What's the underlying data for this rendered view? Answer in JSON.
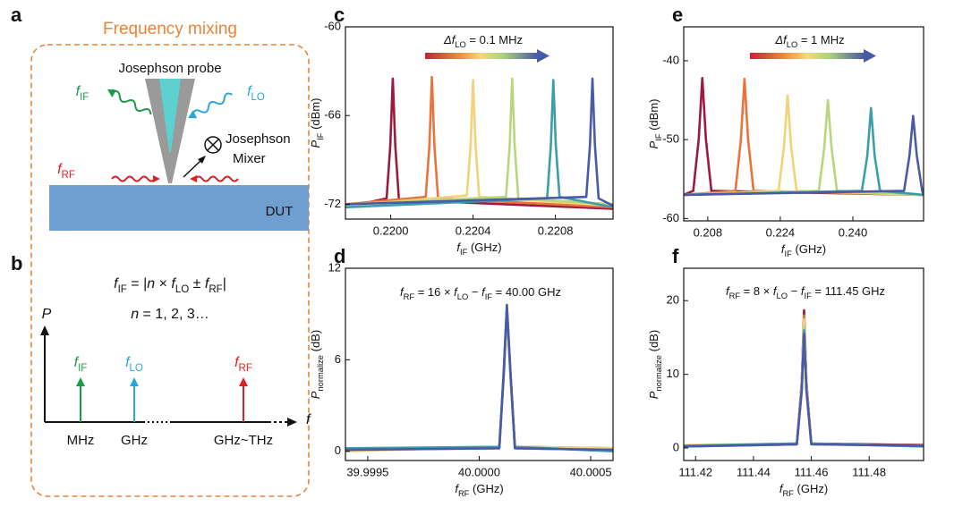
{
  "figure": {
    "panel_a": {
      "label": "a",
      "title": "Frequency mixing",
      "probe": "Josephson probe",
      "f_if": [
        "f",
        "IF"
      ],
      "f_lo": [
        "f",
        "LO"
      ],
      "f_rf": [
        "f",
        "RF"
      ],
      "mixer": [
        "Josephson",
        "Mixer"
      ],
      "dut": "DUT"
    },
    "panel_b": {
      "label": "b",
      "formula": [
        "f",
        "IF",
        " = |",
        "n",
        " × ",
        "f",
        "LO",
        " ± ",
        "f",
        "RF",
        "|"
      ],
      "n_values": [
        "n",
        " = 1, 2, 3…"
      ],
      "p_axis": "P",
      "f_axis": "f",
      "f_if": [
        "f",
        "IF"
      ],
      "f_lo": [
        "f",
        "LO"
      ],
      "f_rf": [
        "f",
        "RF"
      ],
      "units": [
        "MHz",
        "GHz",
        "GHz~THz"
      ]
    }
  },
  "chart_data": [
    {
      "type": "line",
      "label": "c",
      "annotation": [
        "Δ",
        "f",
        "LO",
        " = 0.1 MHz"
      ],
      "xlabel": [
        "f",
        "IF",
        " (GHz)"
      ],
      "ylabel": [
        "P",
        "IF",
        " (dBm)"
      ],
      "xlim": [
        0.21978,
        0.22108
      ],
      "ylim": [
        -73,
        -60
      ],
      "xticks": [
        {
          "value": 0.22,
          "label": "0.2200"
        },
        0.2204,
        0.2208
      ],
      "yticks": [
        -60,
        -66,
        -72
      ],
      "series": [
        {
          "color": "#9b1b3e",
          "x": [
            0.21978,
            0.21998,
            0.219998,
            0.22001,
            0.220022,
            0.22004,
            0.22108
          ],
          "values": [
            -72.2,
            -71.6,
            -68,
            -63.5,
            -68,
            -71.7,
            -72.3
          ]
        },
        {
          "color": "#e8743b",
          "x": [
            0.21978,
            0.22017,
            0.220188,
            0.2202,
            0.220212,
            0.22023,
            0.22108
          ],
          "values": [
            -72,
            -71.5,
            -68,
            -63.4,
            -68,
            -71.6,
            -72.2
          ]
        },
        {
          "color": "#f2d27a",
          "x": [
            0.21978,
            0.22037,
            0.220388,
            0.2204,
            0.220412,
            0.22043,
            0.22108
          ],
          "values": [
            -72.1,
            -71.4,
            -68,
            -63.6,
            -68,
            -71.5,
            -72.1
          ]
        },
        {
          "color": "#b8d67c",
          "x": [
            0.21978,
            0.22056,
            0.220578,
            0.22059,
            0.220602,
            0.22062,
            0.22108
          ],
          "values": [
            -72,
            -71.5,
            -68,
            -63.5,
            -68,
            -71.6,
            -72
          ]
        },
        {
          "color": "#3b9fa8",
          "x": [
            0.21978,
            0.22076,
            0.220778,
            0.22079,
            0.220802,
            0.22082,
            0.22108
          ],
          "values": [
            -72.2,
            -71.6,
            -68,
            -63.6,
            -68,
            -71.5,
            -72.2
          ]
        },
        {
          "color": "#4a5aa6",
          "x": [
            0.21978,
            0.22095,
            0.220968,
            0.22098,
            0.220992,
            0.22101,
            0.22108
          ],
          "values": [
            -72,
            -71.5,
            -68,
            -63.5,
            -68,
            -71.6,
            -72.1
          ]
        }
      ]
    },
    {
      "type": "line",
      "label": "e",
      "annotation": [
        "Δ",
        "f",
        "LO",
        " = 1 MHz"
      ],
      "xlabel": [
        "f",
        "IF",
        " (GHz)"
      ],
      "ylabel": [
        "P",
        "IF",
        " (dBm)"
      ],
      "xlim": [
        0.2027,
        0.2556
      ],
      "ylim": [
        -60.3,
        -35.7
      ],
      "xticks": [
        0.208,
        0.224,
        {
          "value": 0.24,
          "label": "0.240"
        }
      ],
      "yticks": [
        -40,
        -50,
        -60
      ],
      "series": [
        {
          "color": "#9b1b3e",
          "x": [
            0.2027,
            0.2048,
            0.206,
            0.2068,
            0.2076,
            0.2088,
            0.2556
          ],
          "values": [
            -57,
            -56.5,
            -50,
            -42.2,
            -50,
            -56.5,
            -57
          ]
        },
        {
          "color": "#e8743b",
          "x": [
            0.2027,
            0.2141,
            0.2153,
            0.2161,
            0.2169,
            0.2181,
            0.2556
          ],
          "values": [
            -57,
            -56.5,
            -50,
            -42.3,
            -50,
            -56.5,
            -57
          ]
        },
        {
          "color": "#f2d27a",
          "x": [
            0.2027,
            0.2236,
            0.2248,
            0.2256,
            0.2264,
            0.2276,
            0.2556
          ],
          "values": [
            -57,
            -56.5,
            -51,
            -44.4,
            -51,
            -56.5,
            -57
          ]
        },
        {
          "color": "#b8d67c",
          "x": [
            0.2027,
            0.2325,
            0.2337,
            0.2345,
            0.2353,
            0.2365,
            0.2556
          ],
          "values": [
            -57,
            -56.5,
            -51,
            -45,
            -51,
            -56.5,
            -57
          ]
        },
        {
          "color": "#3b9fa8",
          "x": [
            0.2027,
            0.242,
            0.2432,
            0.244,
            0.2448,
            0.246,
            0.2556
          ],
          "values": [
            -57,
            -56.5,
            -52,
            -46,
            -52,
            -56.5,
            -57
          ]
        },
        {
          "color": "#4a5aa6",
          "x": [
            0.2027,
            0.2513,
            0.2525,
            0.2533,
            0.2541,
            0.2553,
            0.2556
          ],
          "values": [
            -57,
            -56.5,
            -52,
            -47,
            -52,
            -56.5,
            -57
          ]
        }
      ]
    },
    {
      "type": "line",
      "label": "d",
      "annotation": [
        "f",
        "RF",
        " = 16 × ",
        "f",
        "LO",
        " − ",
        "f",
        "IF",
        " = 40.00 GHz"
      ],
      "xlabel": [
        "f",
        "RF",
        " (GHz)"
      ],
      "ylabel": [
        "P",
        "normalize",
        " (dB)"
      ],
      "xlim": [
        39.9994,
        40.0006
      ],
      "ylim": [
        -0.6,
        12
      ],
      "xticks": [
        39.9995,
        {
          "value": 40,
          "label": "40.0000"
        },
        40.0005
      ],
      "yticks": [
        0,
        6,
        12
      ],
      "series": [
        {
          "color": "#9b1b3e",
          "x": [
            39.9994,
            40.00009,
            40.00011,
            40.000124,
            40.00014,
            40.00016,
            40.0006
          ],
          "values": [
            0.1,
            0.3,
            5,
            9.3,
            5,
            0.3,
            0.2
          ]
        },
        {
          "color": "#e8743b",
          "x": [
            39.9994,
            40.00009,
            40.00011,
            40.000124,
            40.00014,
            40.00016,
            40.0006
          ],
          "values": [
            0.2,
            0.2,
            5.2,
            9.4,
            5.1,
            0.2,
            0.1
          ]
        },
        {
          "color": "#f2d27a",
          "x": [
            39.9994,
            40.00009,
            40.00011,
            40.000124,
            40.00014,
            40.00016,
            40.0006
          ],
          "values": [
            0,
            0.3,
            4.9,
            9.2,
            5,
            0.3,
            0.2
          ]
        },
        {
          "color": "#b8d67c",
          "x": [
            39.9994,
            40.00009,
            40.00011,
            40.000124,
            40.00014,
            40.00016,
            40.0006
          ],
          "values": [
            0.1,
            0.2,
            5.1,
            9.5,
            5.2,
            0.2,
            0.1
          ]
        },
        {
          "color": "#3b9fa8",
          "x": [
            39.9994,
            40.00009,
            40.00011,
            40.000124,
            40.00014,
            40.00016,
            40.0006
          ],
          "values": [
            0.2,
            0.3,
            5,
            9.4,
            5.1,
            0.3,
            0
          ]
        },
        {
          "color": "#4a5aa6",
          "x": [
            39.9994,
            40.00009,
            40.00011,
            40.000124,
            40.00014,
            40.00016,
            40.0006
          ],
          "values": [
            0.1,
            0.2,
            5.3,
            9.6,
            5.2,
            0.2,
            0.1
          ]
        }
      ]
    },
    {
      "type": "line",
      "label": "f",
      "annotation": [
        "f",
        "RF",
        " = 8 × ",
        "f",
        "LO",
        " − ",
        "f",
        "IF",
        " = 111.45 GHz"
      ],
      "xlabel": [
        "f",
        "RF",
        " (GHz)"
      ],
      "ylabel": [
        "P",
        "normalize",
        " (dB)"
      ],
      "xlim": [
        111.4159,
        111.4988
      ],
      "ylim": [
        -1.7,
        24.4
      ],
      "xticks": [
        111.42,
        111.44,
        111.46,
        111.48
      ],
      "yticks": [
        0,
        10,
        20
      ],
      "series": [
        {
          "color": "#9b1b3e",
          "x": [
            111.4159,
            111.455,
            111.4567,
            111.4575,
            111.4583,
            111.46,
            111.4988
          ],
          "values": [
            0.3,
            0.6,
            9,
            18.7,
            9,
            0.6,
            0.4
          ]
        },
        {
          "color": "#e8743b",
          "x": [
            111.4159,
            111.455,
            111.4567,
            111.4575,
            111.4583,
            111.46,
            111.4988
          ],
          "values": [
            0.2,
            0.5,
            8.8,
            18,
            8.8,
            0.5,
            0.3
          ]
        },
        {
          "color": "#f2d27a",
          "x": [
            111.4159,
            111.455,
            111.4567,
            111.4575,
            111.4583,
            111.46,
            111.4988
          ],
          "values": [
            0.4,
            0.6,
            8.5,
            17.5,
            8.5,
            0.6,
            0.2
          ]
        },
        {
          "color": "#b8d67c",
          "x": [
            111.4159,
            111.455,
            111.4567,
            111.4575,
            111.4583,
            111.46,
            111.4988
          ],
          "values": [
            0.2,
            0.5,
            8.2,
            16.5,
            8.2,
            0.5,
            0.3
          ]
        },
        {
          "color": "#3b9fa8",
          "x": [
            111.4159,
            111.455,
            111.4567,
            111.4575,
            111.4583,
            111.46,
            111.4988
          ],
          "values": [
            0.3,
            0.6,
            8,
            16,
            8,
            0.6,
            0.2
          ]
        },
        {
          "color": "#4a5aa6",
          "x": [
            111.4159,
            111.455,
            111.4567,
            111.4575,
            111.4583,
            111.46,
            111.4988
          ],
          "values": [
            0.2,
            0.5,
            7.8,
            15.5,
            7.8,
            0.5,
            0.3
          ]
        }
      ]
    }
  ]
}
